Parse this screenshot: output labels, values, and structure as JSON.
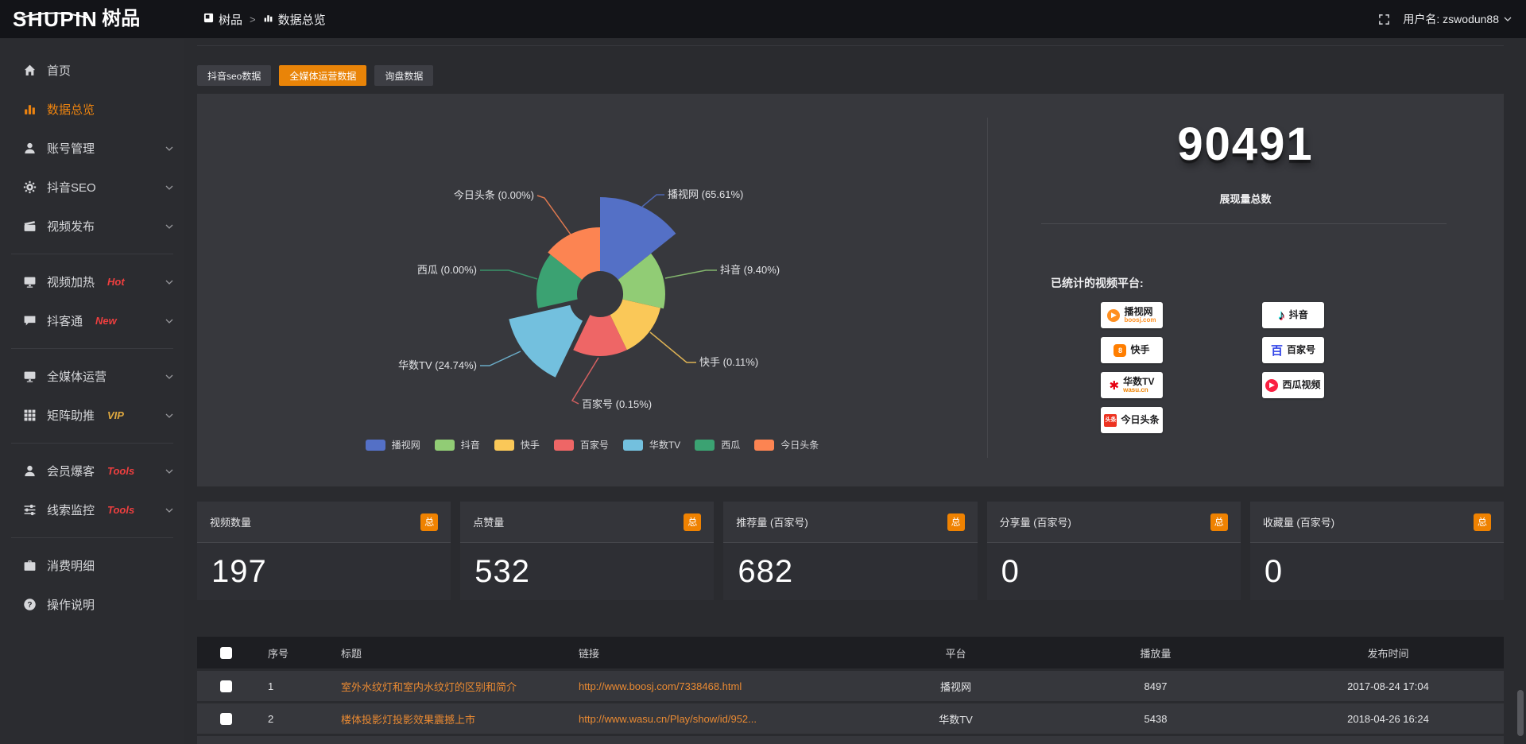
{
  "topbar": {
    "logo": {
      "en": "SHUPIN",
      "cn": "树品"
    },
    "breadcrumb": [
      {
        "label": "树品",
        "icon": "app-icon"
      },
      {
        "label": "数据总览",
        "icon": "bars-icon"
      }
    ],
    "breadcrumb_separator": ">",
    "username": "用户名: zswodun88"
  },
  "sidebar": {
    "groups": [
      [
        {
          "label": "首页",
          "icon": "home-icon"
        },
        {
          "label": "数据总览",
          "icon": "bar-chart-icon",
          "active": true
        },
        {
          "label": "账号管理",
          "icon": "user-icon",
          "expand": true
        },
        {
          "label": "抖音SEO",
          "icon": "gear-icon",
          "expand": true
        },
        {
          "label": "视频发布",
          "icon": "video-upload-icon",
          "expand": true
        }
      ],
      [
        {
          "label": "视频加热",
          "icon": "monitor-play-icon",
          "badge": "Hot",
          "badge_color": "#ee3f3f",
          "expand": true
        },
        {
          "label": "抖客通",
          "icon": "chat-icon",
          "badge": "New",
          "badge_color": "#ee3f3f",
          "expand": true
        }
      ],
      [
        {
          "label": "全媒体运营",
          "icon": "monitor-icon",
          "expand": true
        },
        {
          "label": "矩阵助推",
          "icon": "grid-icon",
          "badge": "VIP",
          "badge_color": "#e0a93f",
          "expand": true
        }
      ],
      [
        {
          "label": "会员爆客",
          "icon": "member-icon",
          "badge": "Tools",
          "badge_color": "#ee3f3f",
          "expand": true
        },
        {
          "label": "线索监控",
          "icon": "sliders-icon",
          "badge": "Tools",
          "badge_color": "#ee3f3f",
          "expand": true
        }
      ],
      [
        {
          "label": "消费明细",
          "icon": "briefcase-icon"
        },
        {
          "label": "操作说明",
          "icon": "help-icon"
        }
      ]
    ]
  },
  "tabs": [
    {
      "label": "抖音seo数据",
      "active": false
    },
    {
      "label": "全媒体运营数据",
      "active": true
    },
    {
      "label": "询盘数据",
      "active": false
    }
  ],
  "chart_data": {
    "type": "pie",
    "variant": "rose",
    "legend_position": "bottom",
    "label_format": "name (pct%)",
    "slices": [
      {
        "name": "播视网",
        "pct": 65.61,
        "color": "#5470c6"
      },
      {
        "name": "抖音",
        "pct": 9.4,
        "color": "#91cc75"
      },
      {
        "name": "快手",
        "pct": 0.11,
        "color": "#fac858"
      },
      {
        "name": "百家号",
        "pct": 0.15,
        "color": "#ee6666"
      },
      {
        "name": "华数TV",
        "pct": 24.74,
        "color": "#73c0de"
      },
      {
        "name": "西瓜",
        "pct": 0,
        "color": "#3ba272"
      },
      {
        "name": "今日头条",
        "pct": 0,
        "color": "#fc8452"
      }
    ]
  },
  "summary": {
    "total_value": "90491",
    "total_label": "展现量总数",
    "platforms_label": "已统计的视频平台:",
    "platform_badges": {
      "left": [
        {
          "name": "播视网",
          "sub": "boosj.com",
          "icon": "boosj-logo",
          "glyph": "▶",
          "glyph_color": "#ffffff",
          "bg": "#ff8f1f",
          "shape": "circle",
          "sub_color": "#ff8f1f"
        },
        {
          "name": "快手",
          "icon": "kuaishou-logo",
          "glyph": "8",
          "glyph_color": "#ffffff",
          "bg": "#ff7e00",
          "shape": "round-square"
        },
        {
          "name": "华数TV",
          "sub": "wasu.cn",
          "icon": "wasu-logo",
          "glyph": "✱",
          "glyph_color": "#e60012",
          "shape": "glyph",
          "sub_color": "#f08300"
        },
        {
          "name": "今日头条",
          "icon": "toutiao-logo",
          "glyph": "头条",
          "glyph_color": "#ffffff",
          "bg": "#ed3321",
          "shape": "square-wide"
        }
      ],
      "right": [
        {
          "name": "抖音",
          "icon": "douyin-logo",
          "glyph": "♪",
          "glyph_color": "#0b0b14",
          "shape": "glyph"
        },
        {
          "name": "百家号",
          "icon": "baijiahao-logo",
          "glyph": "百",
          "glyph_color": "#3245e8",
          "shape": "glyph"
        },
        {
          "name": "西瓜视频",
          "icon": "xigua-logo",
          "glyph": "▶",
          "glyph_color": "#ffffff",
          "bg": "#fa1f41",
          "shape": "circle"
        }
      ]
    }
  },
  "stat_cards": [
    {
      "title": "视频数量",
      "badge": "总",
      "value": "197"
    },
    {
      "title": "点赞量",
      "badge": "总",
      "value": "532"
    },
    {
      "title": "推荐量 (百家号)",
      "badge": "总",
      "value": "682"
    },
    {
      "title": "分享量 (百家号)",
      "badge": "总",
      "value": "0"
    },
    {
      "title": "收藏量 (百家号)",
      "badge": "总",
      "value": "0"
    }
  ],
  "table": {
    "headers": [
      "序号",
      "标题",
      "链接",
      "平台",
      "播放量",
      "发布时间"
    ],
    "rows": [
      {
        "no": "1",
        "title": "室外水纹灯和室内水纹灯的区别和简介",
        "link": "http://www.boosj.com/7338468.html",
        "platform": "播视网",
        "plays": "8497",
        "time": "2017-08-24 17:04"
      },
      {
        "no": "2",
        "title": "楼体投影灯投影效果震撼上市",
        "link": "http://www.wasu.cn/Play/show/id/952...",
        "platform": "华数TV",
        "plays": "5438",
        "time": "2018-04-26 16:24"
      }
    ]
  }
}
